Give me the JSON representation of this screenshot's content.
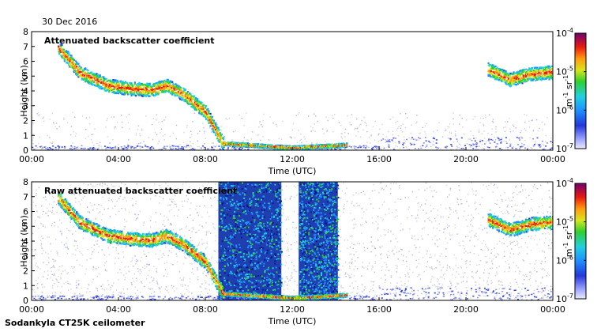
{
  "date_label": "30 Dec 2016",
  "instrument_label": "Sodankyla CT25K ceilometer",
  "chart_data": [
    {
      "type": "heatmap",
      "title": "Attenuated backscatter coefficient",
      "xlabel": "Time (UTC)",
      "ylabel": "Height (km)",
      "xticks": [
        "00:00",
        "04:00",
        "08:00",
        "12:00",
        "16:00",
        "20:00",
        "00:00"
      ],
      "xlim_hours": [
        0,
        24
      ],
      "yticks": [
        "0",
        "1",
        "2",
        "3",
        "4",
        "5",
        "6",
        "7",
        "8"
      ],
      "ylim": [
        0,
        8
      ],
      "colorbar": {
        "ticks": [
          {
            "base": "10",
            "exp": "-4"
          },
          {
            "base": "10",
            "exp": "-5"
          },
          {
            "base": "10",
            "exp": "-6"
          },
          {
            "base": "10",
            "exp": "-7"
          }
        ],
        "label": {
          "unit1": "m",
          "exp1": "-1",
          "unit2": "sr",
          "exp2": "-1"
        },
        "range": [
          1e-07,
          0.0001
        ],
        "scale": "log"
      },
      "features": [
        {
          "name": "cloud layer",
          "t": [
            1.2,
            2.2,
            3.5,
            4.5,
            5.5,
            6.2,
            7.0,
            8.0,
            8.8,
            12.0,
            14.5
          ],
          "h": [
            7.0,
            5.3,
            4.4,
            4.2,
            4.1,
            4.4,
            3.8,
            2.6,
            0.5,
            0.2,
            0.4
          ]
        },
        {
          "name": "late cloud layer",
          "t": [
            21.0,
            22.0,
            23.0,
            24.0
          ],
          "h": [
            5.5,
            4.8,
            5.2,
            5.3
          ]
        },
        {
          "name": "low noisy layer",
          "t": [
            0,
            24
          ],
          "h": [
            0.3,
            0.4
          ]
        }
      ]
    },
    {
      "type": "heatmap",
      "title": "Raw attenuated backscatter coefficient",
      "xlabel": "Time (UTC)",
      "ylabel": "Height (km)",
      "xticks": [
        "00:00",
        "04:00",
        "08:00",
        "12:00",
        "16:00",
        "20:00",
        "00:00"
      ],
      "xlim_hours": [
        0,
        24
      ],
      "yticks": [
        "0",
        "1",
        "2",
        "3",
        "4",
        "5",
        "6",
        "7",
        "8"
      ],
      "ylim": [
        0,
        8
      ],
      "colorbar": {
        "ticks": [
          {
            "base": "10",
            "exp": "-4"
          },
          {
            "base": "10",
            "exp": "-5"
          },
          {
            "base": "10",
            "exp": "-6"
          },
          {
            "base": "10",
            "exp": "-7"
          }
        ],
        "label": {
          "unit1": "m",
          "exp1": "-1",
          "unit2": "sr",
          "exp2": "-1"
        },
        "range": [
          1e-07,
          0.0001
        ],
        "scale": "log"
      },
      "features": [
        {
          "name": "cloud layer",
          "t": [
            1.2,
            2.2,
            3.5,
            4.5,
            5.5,
            6.2,
            7.0,
            8.0,
            8.8,
            12.0,
            14.5
          ],
          "h": [
            7.0,
            5.3,
            4.4,
            4.2,
            4.1,
            4.4,
            3.8,
            2.6,
            0.5,
            0.2,
            0.4
          ]
        },
        {
          "name": "noise block 1",
          "t": [
            8.6,
            11.5
          ],
          "h": [
            0,
            8
          ]
        },
        {
          "name": "noise block 2",
          "t": [
            12.3,
            14.1
          ],
          "h": [
            0,
            8
          ]
        },
        {
          "name": "late cloud layer",
          "t": [
            21.0,
            22.0,
            23.0,
            24.0
          ],
          "h": [
            5.5,
            4.8,
            5.2,
            5.3
          ]
        }
      ]
    }
  ]
}
